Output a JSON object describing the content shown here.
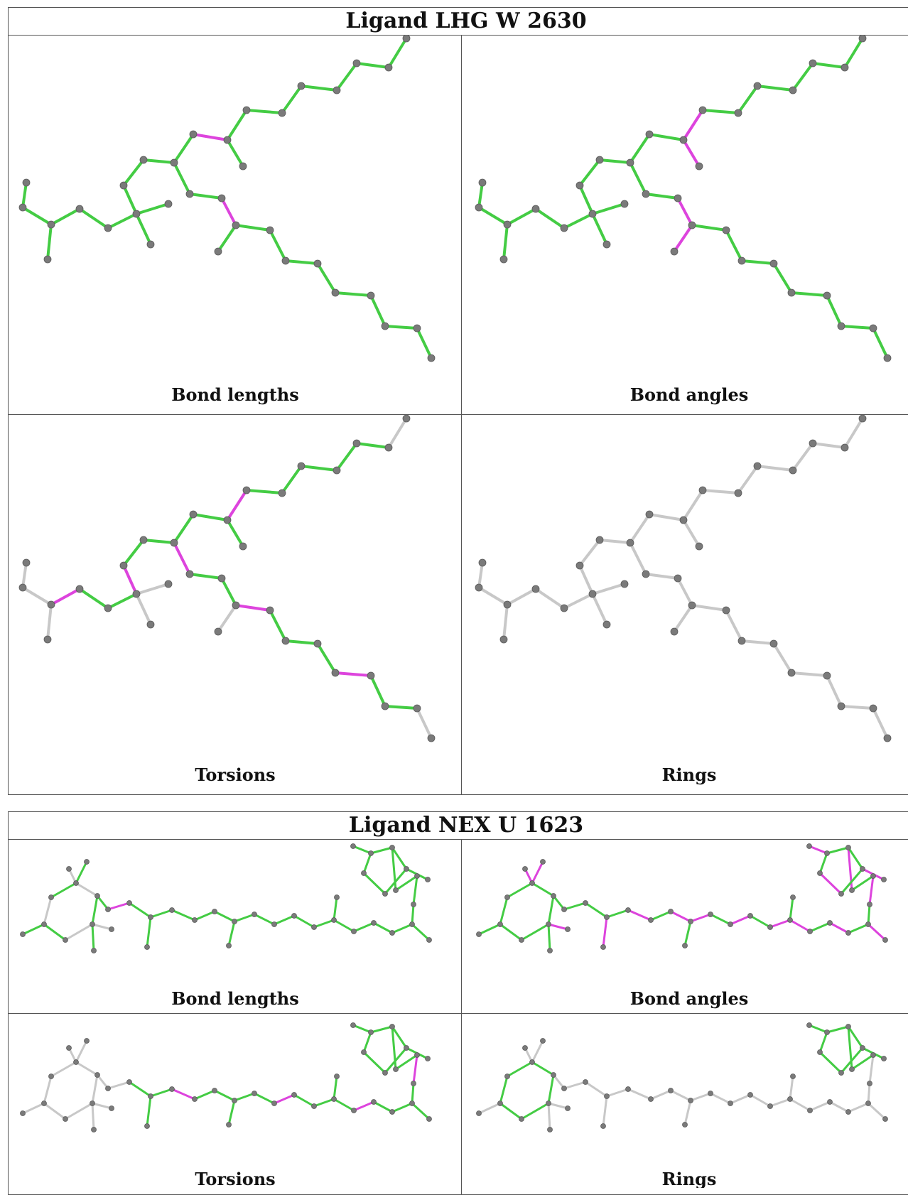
{
  "tables": [
    {
      "title": "Ligand LHG W 2630",
      "panels": [
        {
          "caption": "Bond lengths"
        },
        {
          "caption": "Bond angles"
        },
        {
          "caption": "Torsions"
        },
        {
          "caption": "Rings"
        }
      ]
    },
    {
      "title": "Ligand NEX U 1623",
      "panels": [
        {
          "caption": "Bond lengths"
        },
        {
          "caption": "Bond angles"
        },
        {
          "caption": "Torsions"
        },
        {
          "caption": "Rings"
        }
      ]
    }
  ],
  "colors": {
    "ok_bond": "#44cc44",
    "outlier_bond": "#dd44dd",
    "neutral_bond": "#c8c8c8",
    "atom": "#7a7a7a",
    "border": "#555555"
  }
}
